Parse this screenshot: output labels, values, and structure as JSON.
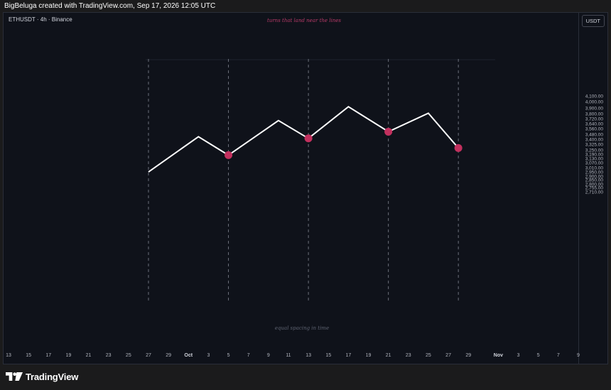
{
  "header": {
    "attribution": "BigBeluga created with TradingView.com, Sep 17, 2026 12:05 UTC"
  },
  "chart": {
    "legend": "ETHUSDT · 4h · Binance",
    "currency": "USDT"
  },
  "annotations": {
    "top": "turns that land near the lines",
    "bottom": "equal spacing in time"
  },
  "branding": {
    "logo_text": "TradingView"
  },
  "colors": {
    "background": "#0f121a",
    "line": "#ffffff",
    "marker": "#c2305e",
    "guide": "#6b6f7a"
  },
  "chart_data": {
    "type": "line",
    "title": "",
    "xlabel": "",
    "ylabel": "",
    "y_scale": "log",
    "y_ticks": [
      "4,100.00",
      "4,000.00",
      "3,900.00",
      "3,800.00",
      "3,720.00",
      "3,640.00",
      "3,560.00",
      "3,480.00",
      "3,400.00",
      "3,325.00",
      "3,250.00",
      "3,190.00",
      "3,130.00",
      "3,070.00",
      "3,010.00",
      "2,950.00",
      "2,900.00",
      "2,850.00",
      "2,800.00",
      "2,755.00",
      "2,710.00"
    ],
    "x_ticks": [
      {
        "label": "13",
        "date": "2026-09-13",
        "bold": false
      },
      {
        "label": "15",
        "date": "2026-09-15",
        "bold": false
      },
      {
        "label": "17",
        "date": "2026-09-17",
        "bold": false
      },
      {
        "label": "19",
        "date": "2026-09-19",
        "bold": false
      },
      {
        "label": "21",
        "date": "2026-09-21",
        "bold": false
      },
      {
        "label": "23",
        "date": "2026-09-23",
        "bold": false
      },
      {
        "label": "25",
        "date": "2026-09-25",
        "bold": false
      },
      {
        "label": "27",
        "date": "2026-09-27",
        "bold": false
      },
      {
        "label": "29",
        "date": "2026-09-29",
        "bold": false
      },
      {
        "label": "Oct",
        "date": "2026-10-01",
        "bold": true
      },
      {
        "label": "3",
        "date": "2026-10-03",
        "bold": false
      },
      {
        "label": "5",
        "date": "2026-10-05",
        "bold": false
      },
      {
        "label": "7",
        "date": "2026-10-07",
        "bold": false
      },
      {
        "label": "9",
        "date": "2026-10-09",
        "bold": false
      },
      {
        "label": "11",
        "date": "2026-10-11",
        "bold": false
      },
      {
        "label": "13",
        "date": "2026-10-13",
        "bold": false
      },
      {
        "label": "15",
        "date": "2026-10-15",
        "bold": false
      },
      {
        "label": "17",
        "date": "2026-10-17",
        "bold": false
      },
      {
        "label": "19",
        "date": "2026-10-19",
        "bold": false
      },
      {
        "label": "21",
        "date": "2026-10-21",
        "bold": false
      },
      {
        "label": "23",
        "date": "2026-10-23",
        "bold": false
      },
      {
        "label": "25",
        "date": "2026-10-25",
        "bold": false
      },
      {
        "label": "27",
        "date": "2026-10-27",
        "bold": false
      },
      {
        "label": "29",
        "date": "2026-10-29",
        "bold": false
      },
      {
        "label": "Nov",
        "date": "2026-11-01",
        "bold": true
      },
      {
        "label": "3",
        "date": "2026-11-03",
        "bold": false
      },
      {
        "label": "5",
        "date": "2026-11-05",
        "bold": false
      },
      {
        "label": "7",
        "date": "2026-11-07",
        "bold": false
      },
      {
        "label": "9",
        "date": "2026-11-09",
        "bold": false
      }
    ],
    "series": [
      {
        "values": [
          {
            "x": "2026-09-27",
            "y": 2960
          },
          {
            "x": "2026-10-02",
            "y": 3450
          },
          {
            "x": "2026-10-05",
            "y": 3185
          },
          {
            "x": "2026-10-10",
            "y": 3700
          },
          {
            "x": "2026-10-13",
            "y": 3425
          },
          {
            "x": "2026-10-17",
            "y": 3930
          },
          {
            "x": "2026-10-21",
            "y": 3525
          },
          {
            "x": "2026-10-25",
            "y": 3820
          },
          {
            "x": "2026-10-28",
            "y": 3285
          }
        ]
      }
    ],
    "markers": [
      {
        "x": "2026-10-05",
        "y": 3185
      },
      {
        "x": "2026-10-13",
        "y": 3425
      },
      {
        "x": "2026-10-21",
        "y": 3525
      },
      {
        "x": "2026-10-28",
        "y": 3285
      }
    ],
    "vertical_lines": [
      "2026-09-27",
      "2026-10-05",
      "2026-10-13",
      "2026-10-21",
      "2026-10-28"
    ],
    "grid": false,
    "legend": "none"
  }
}
